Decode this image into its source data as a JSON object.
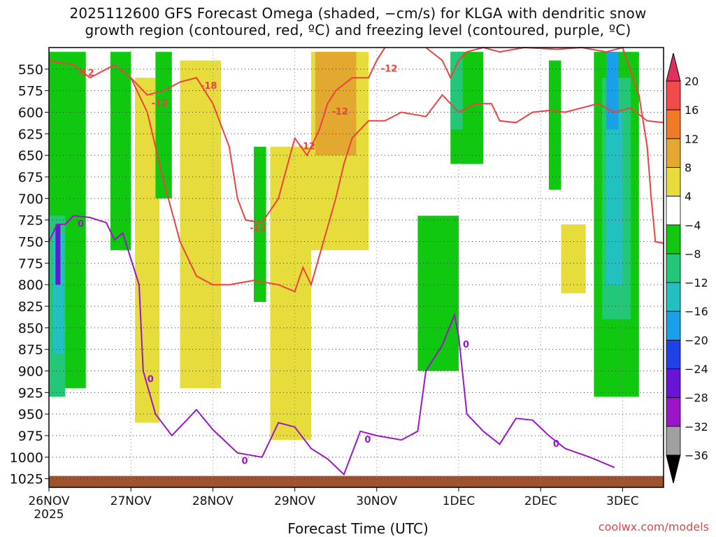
{
  "title_line1": "2025112600 GFS Forecast Omega (shaded, −cm/s) for KLGA with dendritic snow",
  "title_line2": "growth region (contoured, red, ºC) and freezing level (contoured, purple, ºC)",
  "credit": "coolwx.com/models",
  "chart_data": {
    "type": "heatmap",
    "xlabel": "Forecast Time (UTC)",
    "ylabel": "",
    "x_ticks": [
      "26NOV",
      "27NOV",
      "28NOV",
      "29NOV",
      "30NOV",
      "1DEC",
      "2DEC",
      "3DEC"
    ],
    "x_year": "2025",
    "x_range_days": [
      0,
      7.5
    ],
    "y_ticks": [
      550,
      575,
      600,
      625,
      650,
      675,
      700,
      725,
      750,
      775,
      800,
      825,
      850,
      875,
      900,
      925,
      950,
      975,
      1000,
      1025
    ],
    "y_range": [
      525,
      1035
    ],
    "colorbar": {
      "labels": [
        "20",
        "16",
        "12",
        "8",
        "4",
        "−4",
        "−8",
        "−12",
        "−16",
        "−20",
        "−24",
        "−28",
        "−32",
        "−36"
      ],
      "colors": [
        "#e0305e",
        "#f24a4a",
        "#f07a26",
        "#e2a830",
        "#e6dc3c",
        "#ffffff",
        "#10c810",
        "#22c878",
        "#22c0c0",
        "#1aa0e8",
        "#2040e8",
        "#6a14d8",
        "#9a14c8",
        "#a0a0a0",
        "#000000"
      ]
    },
    "omega_regions": [
      {
        "level": "4",
        "color": "#e6dc3c",
        "x0": 1.05,
        "x1": 1.35,
        "p0": 560,
        "p1": 960
      },
      {
        "level": "4",
        "color": "#e6dc3c",
        "x0": 1.6,
        "x1": 2.1,
        "p0": 540,
        "p1": 920
      },
      {
        "level": "4",
        "color": "#e6dc3c",
        "x0": 2.7,
        "x1": 3.2,
        "p0": 640,
        "p1": 980
      },
      {
        "level": "4",
        "color": "#e6dc3c",
        "x0": 3.2,
        "x1": 3.9,
        "p0": 530,
        "p1": 760
      },
      {
        "level": "8",
        "color": "#e2a830",
        "x0": 3.25,
        "x1": 3.75,
        "p0": 530,
        "p1": 650
      },
      {
        "level": "4",
        "color": "#e6dc3c",
        "x0": 6.25,
        "x1": 6.55,
        "p0": 730,
        "p1": 810
      },
      {
        "level": "4",
        "color": "#e6dc3c",
        "x0": 6.85,
        "x1": 7.0,
        "p0": 560,
        "p1": 700
      },
      {
        "level": "-4",
        "color": "#10c810",
        "x0": 0.0,
        "x1": 0.45,
        "p0": 530,
        "p1": 920
      },
      {
        "level": "-4",
        "color": "#10c810",
        "x0": 0.75,
        "x1": 1.0,
        "p0": 530,
        "p1": 760
      },
      {
        "level": "-4",
        "color": "#10c810",
        "x0": 1.3,
        "x1": 1.5,
        "p0": 530,
        "p1": 700
      },
      {
        "level": "-4",
        "color": "#10c810",
        "x0": 2.5,
        "x1": 2.65,
        "p0": 640,
        "p1": 820
      },
      {
        "level": "-4",
        "color": "#10c810",
        "x0": 4.5,
        "x1": 5.0,
        "p0": 720,
        "p1": 900
      },
      {
        "level": "-4",
        "color": "#10c810",
        "x0": 4.9,
        "x1": 5.3,
        "p0": 530,
        "p1": 660
      },
      {
        "level": "-8",
        "color": "#22c878",
        "x0": 4.9,
        "x1": 5.05,
        "p0": 530,
        "p1": 620
      },
      {
        "level": "-4",
        "color": "#10c810",
        "x0": 6.1,
        "x1": 6.25,
        "p0": 540,
        "p1": 690
      },
      {
        "level": "-4",
        "color": "#10c810",
        "x0": 6.65,
        "x1": 7.2,
        "p0": 530,
        "p1": 930
      },
      {
        "level": "-8",
        "color": "#22c878",
        "x0": 6.75,
        "x1": 7.1,
        "p0": 560,
        "p1": 840
      },
      {
        "level": "-12",
        "color": "#22c0c0",
        "x0": 6.8,
        "x1": 7.0,
        "p0": 600,
        "p1": 800
      },
      {
        "level": "-16",
        "color": "#1aa0e8",
        "x0": 6.8,
        "x1": 6.95,
        "p0": 530,
        "p1": 620
      },
      {
        "level": "-8",
        "color": "#22c878",
        "x0": 0.0,
        "x1": 0.2,
        "p0": 720,
        "p1": 930
      },
      {
        "level": "-12",
        "color": "#22c0c0",
        "x0": 0.05,
        "x1": 0.18,
        "p0": 740,
        "p1": 880
      },
      {
        "level": "-24",
        "color": "#6a14d8",
        "x0": 0.08,
        "x1": 0.14,
        "p0": 730,
        "p1": 800
      }
    ],
    "contours": [
      {
        "name": "-12",
        "color": "#f04040",
        "labels": [
          "-12",
          "-12",
          "-18",
          "-12",
          "-12",
          "-12",
          "-12"
        ],
        "points": [
          [
            0.0,
            540
          ],
          [
            0.3,
            545
          ],
          [
            0.5,
            560
          ],
          [
            0.8,
            545
          ],
          [
            1.0,
            560
          ],
          [
            1.2,
            580
          ],
          [
            1.4,
            575
          ],
          [
            1.6,
            565
          ],
          [
            1.8,
            560
          ],
          [
            2.0,
            590
          ],
          [
            2.2,
            640
          ],
          [
            2.3,
            700
          ],
          [
            2.4,
            725
          ],
          [
            2.6,
            728
          ],
          [
            2.8,
            700
          ],
          [
            3.0,
            630
          ],
          [
            3.15,
            650
          ],
          [
            3.3,
            620
          ],
          [
            3.4,
            590
          ],
          [
            3.5,
            575
          ],
          [
            3.7,
            560
          ],
          [
            3.9,
            560
          ],
          [
            4.0,
            540
          ],
          [
            4.1,
            525
          ]
        ]
      },
      {
        "name": "-12b",
        "color": "#f04040",
        "points": [
          [
            1.0,
            560
          ],
          [
            1.2,
            600
          ],
          [
            1.4,
            680
          ],
          [
            1.6,
            750
          ],
          [
            1.8,
            790
          ],
          [
            2.0,
            800
          ],
          [
            2.2,
            800
          ],
          [
            2.5,
            795
          ],
          [
            2.8,
            800
          ],
          [
            3.0,
            808
          ],
          [
            3.1,
            780
          ],
          [
            3.2,
            800
          ],
          [
            3.35,
            750
          ],
          [
            3.5,
            700
          ],
          [
            3.6,
            660
          ],
          [
            3.7,
            630
          ],
          [
            3.9,
            610
          ],
          [
            4.1,
            610
          ],
          [
            4.3,
            600
          ],
          [
            4.6,
            605
          ],
          [
            4.8,
            580
          ],
          [
            5.0,
            600
          ],
          [
            5.2,
            590
          ],
          [
            5.4,
            590
          ],
          [
            5.5,
            610
          ],
          [
            5.7,
            612
          ],
          [
            5.9,
            600
          ],
          [
            6.1,
            598
          ],
          [
            6.3,
            600
          ],
          [
            6.5,
            595
          ],
          [
            6.7,
            590
          ],
          [
            6.9,
            600
          ],
          [
            7.1,
            595
          ],
          [
            7.3,
            610
          ],
          [
            7.5,
            612
          ]
        ]
      },
      {
        "name": "-12c",
        "color": "#f04040",
        "points": [
          [
            4.6,
            525
          ],
          [
            4.8,
            540
          ],
          [
            4.9,
            560
          ],
          [
            5.0,
            540
          ],
          [
            5.1,
            530
          ],
          [
            5.3,
            525
          ],
          [
            5.5,
            530
          ],
          [
            5.8,
            525
          ],
          [
            6.2,
            527
          ],
          [
            6.5,
            525
          ],
          [
            6.8,
            530
          ],
          [
            7.0,
            525
          ],
          [
            7.2,
            580
          ],
          [
            7.3,
            640
          ],
          [
            7.35,
            700
          ],
          [
            7.4,
            750
          ],
          [
            7.5,
            752
          ]
        ]
      },
      {
        "name": "0",
        "color": "#9b16c8",
        "labels": [
          "0",
          "0",
          "0",
          "0",
          "0",
          "0"
        ],
        "points": [
          [
            0.0,
            750
          ],
          [
            0.1,
            730
          ],
          [
            0.2,
            730
          ],
          [
            0.3,
            720
          ],
          [
            0.5,
            722
          ],
          [
            0.7,
            728
          ],
          [
            0.8,
            748
          ],
          [
            0.9,
            740
          ],
          [
            1.0,
            770
          ],
          [
            1.1,
            800
          ],
          [
            1.15,
            900
          ],
          [
            1.3,
            950
          ],
          [
            1.5,
            975
          ],
          [
            1.6,
            965
          ],
          [
            1.8,
            945
          ],
          [
            2.0,
            968
          ],
          [
            2.3,
            995
          ],
          [
            2.6,
            1000
          ],
          [
            2.8,
            960
          ],
          [
            3.0,
            965
          ],
          [
            3.2,
            990
          ],
          [
            3.4,
            1002
          ],
          [
            3.6,
            1020
          ],
          [
            3.8,
            970
          ],
          [
            4.0,
            975
          ],
          [
            4.3,
            980
          ],
          [
            4.5,
            970
          ],
          [
            4.6,
            900
          ],
          [
            4.8,
            870
          ],
          [
            4.95,
            835
          ],
          [
            5.0,
            860
          ],
          [
            5.1,
            950
          ],
          [
            5.3,
            970
          ],
          [
            5.5,
            985
          ],
          [
            5.7,
            955
          ],
          [
            5.9,
            957
          ],
          [
            6.1,
            975
          ],
          [
            6.3,
            990
          ],
          [
            6.6,
            1000
          ],
          [
            6.9,
            1012
          ]
        ]
      }
    ]
  }
}
